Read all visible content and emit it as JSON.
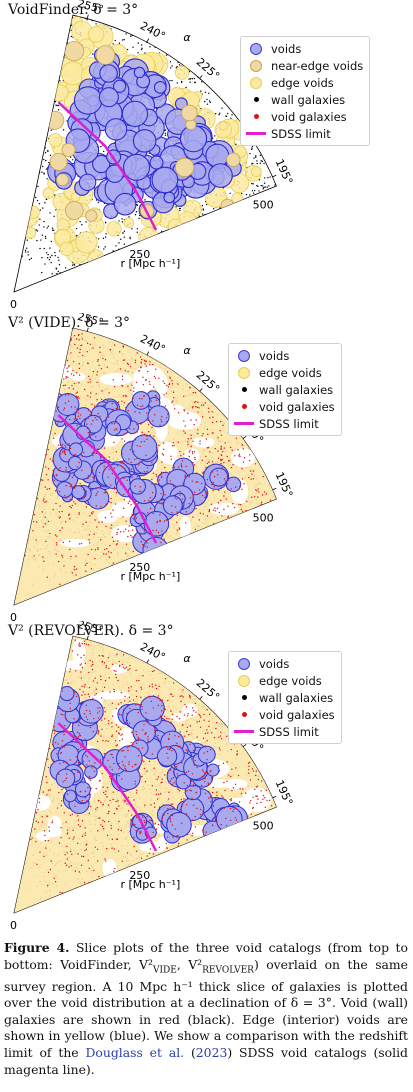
{
  "panels": [
    {
      "title": "VoidFinder. δ = 3°",
      "legend": [
        {
          "label": "voids",
          "marker": "big",
          "fill": "#a9a9f0",
          "stroke": "#3b3bd6"
        },
        {
          "label": "near-edge voids",
          "marker": "big",
          "fill": "#f0d9a3",
          "stroke": "#c8a050"
        },
        {
          "label": "edge voids",
          "marker": "big",
          "fill": "#fbeaa0",
          "stroke": "#e7cf55"
        },
        {
          "label": "wall galaxies",
          "marker": "small",
          "fill": "#000000"
        },
        {
          "label": "void galaxies",
          "marker": "small",
          "fill": "#e01010"
        },
        {
          "label": "SDSS limit",
          "marker": "line",
          "fill": "#e020d0"
        }
      ],
      "style": "circles"
    },
    {
      "title": "V² (VIDE). δ = 3°",
      "legend": [
        {
          "label": "voids",
          "marker": "big",
          "fill": "#a9a9f0",
          "stroke": "#3b3bd6"
        },
        {
          "label": "edge voids",
          "marker": "big",
          "fill": "#fbeaa0",
          "stroke": "#e7cf55"
        },
        {
          "label": "wall galaxies",
          "marker": "small",
          "fill": "#000000"
        },
        {
          "label": "void galaxies",
          "marker": "small",
          "fill": "#e01010"
        },
        {
          "label": "SDSS limit",
          "marker": "line",
          "fill": "#e020d0"
        }
      ],
      "style": "zones"
    },
    {
      "title": "V² (REVOLVER). δ = 3°",
      "legend": [
        {
          "label": "voids",
          "marker": "big",
          "fill": "#a9a9f0",
          "stroke": "#3b3bd6"
        },
        {
          "label": "edge voids",
          "marker": "big",
          "fill": "#fbeaa0",
          "stroke": "#e7cf55"
        },
        {
          "label": "wall galaxies",
          "marker": "small",
          "fill": "#000000"
        },
        {
          "label": "void galaxies",
          "marker": "small",
          "fill": "#e01010"
        },
        {
          "label": "SDSS limit",
          "marker": "line",
          "fill": "#e020d0"
        }
      ],
      "style": "zones"
    }
  ],
  "axes": {
    "ra_ticks": [
      "255°",
      "240°",
      "225°",
      "210°",
      "195°"
    ],
    "alpha_label": "α",
    "r_ticks": [
      "0",
      "250",
      "500"
    ],
    "r_label": "r [Mpc h⁻¹]"
  },
  "caption": {
    "fig_label": "Figure 4.",
    "text_1": " Slice plots of the three void catalogs (from top to bottom: VoidFinder, V²",
    "sub_vide": "VIDE",
    "text_2": ", V²",
    "sub_revolver": "REVOLVER",
    "text_3": ") overlaid on the same survey region. A 10 Mpc h⁻¹ thick slice of galaxies is plotted over the void distribution at a declination of δ = 3°. Void (wall) galaxies are shown in red (black). Edge (interior) voids are shown in yellow (blue). We show a comparison with the redshift limit of the ",
    "cite": "Douglass et al.",
    "text_4": " (",
    "cite_year": "2023",
    "text_5": ") SDSS void catalogs (solid magenta line)."
  }
}
